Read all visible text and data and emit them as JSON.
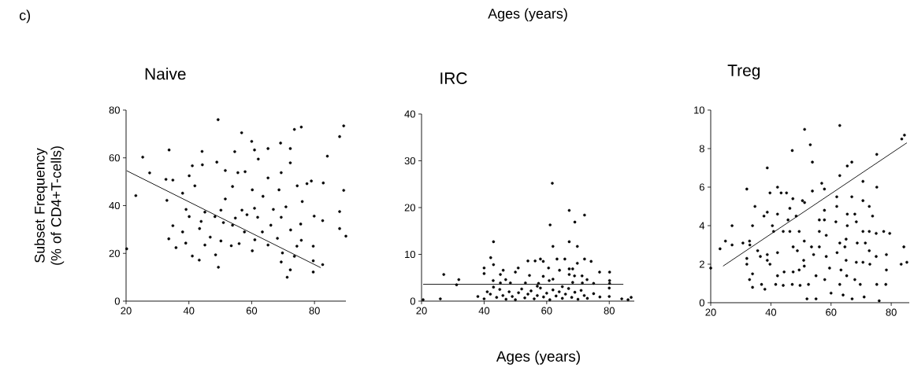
{
  "chart_data": [
    {
      "type": "scatter",
      "title": "Naive",
      "ylabel": "Subset Frequency (% of CD4+T-cells)",
      "annotations": [
        "c)"
      ],
      "xlim": [
        20,
        90
      ],
      "ylim": [
        0,
        80
      ],
      "xticks": [
        20,
        40,
        60,
        80
      ],
      "yticks": [
        0,
        20,
        40,
        60,
        80
      ],
      "series": [
        {
          "marker": "circle",
          "color": "#000000",
          "x": [
            49.3,
            56.8,
            73.6,
            75.8,
            89.3,
            88.0,
            84.1,
            25.3,
            33.7,
            27.5,
            23.1,
            20.2,
            60.0,
            69.2,
            60.9,
            65.2,
            72.3,
            62.1,
            54.6,
            44.2,
            48.9,
            41.1,
            44.3,
            32.7,
            34.9,
            40.1,
            41.9,
            53.9,
            57.9,
            55.6,
            51.6,
            65.2,
            69.4,
            72.3,
            79.0,
            82.8,
            89.3,
            77.6,
            74.5,
            68.7,
            60.2,
            38.0,
            33.0,
            51.6,
            63.6,
            76.1,
            39.1,
            45.1,
            50.2,
            56.9,
            60.9,
            66.9,
            70.9,
            40.1,
            48.3,
            54.8,
            61.9,
            69.4,
            79.9,
            82.6,
            88.0,
            43.9,
            51.0,
            58.5,
            34.9,
            66.1,
            75.6,
            43.4,
            53.9,
            57.7,
            63.4,
            72.4,
            88.0,
            38.0,
            90.0,
            33.6,
            46.8,
            39.0,
            50.2,
            56.0,
            61.0,
            68.2,
            75.8,
            35.9,
            45.1,
            53.5,
            60.2,
            65.2,
            74.4,
            79.6,
            41.1,
            43.3,
            48.5,
            69.8,
            69.4,
            73.6,
            49.4,
            72.3,
            71.3,
            79.6,
            79.6,
            82.6
          ],
          "values": [
            76.0,
            70.5,
            71.9,
            72.9,
            73.4,
            68.9,
            60.7,
            60.3,
            63.3,
            53.7,
            44.2,
            21.9,
            66.9,
            66.2,
            63.3,
            63.9,
            63.9,
            59.5,
            62.6,
            62.7,
            58.2,
            56.7,
            57.1,
            51.0,
            50.7,
            52.5,
            48.3,
            48.0,
            54.2,
            53.8,
            54.7,
            51.6,
            53.8,
            57.9,
            50.3,
            49.5,
            46.4,
            49.2,
            48.3,
            46.6,
            46.6,
            45.2,
            42.2,
            42.8,
            43.9,
            41.7,
            38.4,
            37.3,
            38.1,
            38.1,
            38.9,
            38.4,
            39.5,
            35.4,
            35.4,
            34.8,
            35.1,
            35.1,
            35.6,
            33.7,
            37.5,
            33.4,
            32.9,
            36.2,
            31.6,
            31.8,
            32.3,
            30.4,
            31.8,
            29.0,
            29.0,
            29.8,
            30.4,
            29.0,
            27.2,
            26.1,
            26.8,
            24.3,
            25.2,
            24.1,
            25.7,
            26.3,
            25.5,
            22.4,
            23.5,
            23.2,
            21.1,
            23.5,
            23.0,
            23.0,
            18.9,
            17.2,
            19.4,
            20.2,
            16.4,
            18.8,
            14.2,
            13.1,
            10.0,
            16.9,
            12.2,
            15.3
          ]
        },
        {
          "type": "line",
          "color": "#000000",
          "x": [
            20.2,
            82.0
          ],
          "values": [
            54.6,
            14.0
          ]
        }
      ]
    },
    {
      "type": "scatter",
      "title": "IRC",
      "xlabel": "Ages (years)",
      "annotations": [
        "Ages (years)"
      ],
      "xlim": [
        20,
        88
      ],
      "ylim": [
        0,
        40
      ],
      "xticks": [
        20,
        40,
        60,
        80
      ],
      "yticks": [
        0,
        10,
        20,
        30,
        40
      ],
      "series": [
        {
          "marker": "circle",
          "color": "#000000",
          "x": [
            61.8,
            67.2,
            69.0,
            72.1,
            61.1,
            62.0,
            67.2,
            69.8,
            43.0,
            42.1,
            43.0,
            40.0,
            40.0,
            27.1,
            31.9,
            45.2,
            46.1,
            50.9,
            50.0,
            54.0,
            56.3,
            58.0,
            58.9,
            60.6,
            63.3,
            65.8,
            64.1,
            67.2,
            68.3,
            67.2,
            69.8,
            72.1,
            74.2,
            68.9,
            71.3,
            72.9,
            76.9,
            80.1,
            54.5,
            58.9,
            62.0,
            42.9,
            46.9,
            48.4,
            45.2,
            53.2,
            57.4,
            60.8,
            68.3,
            71.4,
            75.0,
            80.1,
            80.1,
            31.2,
            20.5,
            26,
            38,
            40,
            41,
            42,
            44,
            45,
            46,
            47,
            48,
            49,
            50,
            51,
            52,
            53,
            54,
            55,
            56,
            57,
            58,
            59,
            60,
            61,
            62,
            63,
            64,
            65,
            66,
            67,
            68,
            69,
            70,
            71,
            72,
            73,
            75,
            77,
            80,
            80,
            84,
            86,
            87,
            43,
            57,
            65
          ],
          "values": [
            25.2,
            19.4,
            16.9,
            18.4,
            16.3,
            11.7,
            12.7,
            11.7,
            12.7,
            9.3,
            7.8,
            7.1,
            5.9,
            5.7,
            4.6,
            5.7,
            6.6,
            7.1,
            6.2,
            8.6,
            8.6,
            9.0,
            8.5,
            7.1,
            9.0,
            9.0,
            6.6,
            6.9,
            6.9,
            5.7,
            8.1,
            9.0,
            8.5,
            5.4,
            5.4,
            4.6,
            6.2,
            6.2,
            5.5,
            5.3,
            4.7,
            4.4,
            4.6,
            3.9,
            3.9,
            3.9,
            3.8,
            4.4,
            4.0,
            3.9,
            3.8,
            4.4,
            3.8,
            3.5,
            0.3,
            0.5,
            1.0,
            0.5,
            2.0,
            1.5,
            0.8,
            2.5,
            1.2,
            0.4,
            2.0,
            1.0,
            0.3,
            1.8,
            2.6,
            0.7,
            1.5,
            2.2,
            0.5,
            1.2,
            2.8,
            0.9,
            1.7,
            0.3,
            2.4,
            1.1,
            2.0,
            0.6,
            1.5,
            2.7,
            0.8,
            1.9,
            0.4,
            2.3,
            1.2,
            0.6,
            1.6,
            0.9,
            2.8,
            1.0,
            0.5,
            0.3,
            0.8,
            3.0,
            3.2,
            3.1
          ]
        },
        {
          "type": "line",
          "color": "#000000",
          "x": [
            20.5,
            84.5
          ],
          "values": [
            3.6,
            3.6
          ]
        }
      ]
    },
    {
      "type": "scatter",
      "title": "Treg",
      "xlim": [
        20,
        86
      ],
      "ylim": [
        0,
        10
      ],
      "xticks": [
        20,
        40,
        60,
        80
      ],
      "yticks": [
        0,
        2,
        4,
        6,
        8,
        10
      ],
      "series": [
        {
          "marker": "circle",
          "color": "#000000",
          "x": [
            20.0,
            23.1,
            24.9,
            27.1,
            27.1,
            30.7,
            32.0,
            32.9,
            33.0,
            32.0,
            32.0,
            33.9,
            34.7,
            33.9,
            32.9,
            33.9,
            35.6,
            36.5,
            36.9,
            37.7,
            38.8,
            38.8,
            38.8,
            38.8,
            39.7,
            39.7,
            40.5,
            40.9,
            42.2,
            42.2,
            42.2,
            42.2,
            41.6,
            43.4,
            44.1,
            44.4,
            45.2,
            45.7,
            46.3,
            46.3,
            47.1,
            47.3,
            47.4,
            47.4,
            44.1,
            47.1,
            48.4,
            48.8,
            49.4,
            49.4,
            49.7,
            50.5,
            51.2,
            51.2,
            51.1,
            50.9,
            51.1,
            52.5,
            53.1,
            53.8,
            53.8,
            53.5,
            54.2,
            55.0,
            56.1,
            56.1,
            56.1,
            56.9,
            57.8,
            57.8,
            57.8,
            58.4,
            58.4,
            57.9,
            59.5,
            61.6,
            61.9,
            61.9,
            62.9,
            62.9,
            62.9,
            62.0,
            63.3,
            62.9,
            65.4,
            66.9,
            65.4,
            65.4,
            65.0,
            64.6,
            65.0,
            65.2,
            66.9,
            67.9,
            68.4,
            68.7,
            68.4,
            67.9,
            70.6,
            70.6,
            70.6,
            71.4,
            70.6,
            69.7,
            72.7,
            72.7,
            72.7,
            72.9,
            73.8,
            75.2,
            75.2,
            75.0,
            75.0,
            75.2,
            77.5,
            78.4,
            78.4,
            79.5,
            78.2,
            83.5,
            84.4,
            84.2,
            83.3,
            85.2,
            52,
            55,
            60,
            64,
            67,
            71,
            76,
            38
          ],
          "values": [
            1.8,
            2.8,
            3.2,
            4.0,
            3.0,
            3.1,
            5.9,
            3.2,
            3.0,
            2.3,
            2.0,
            4.0,
            5.0,
            1.5,
            1.2,
            0.8,
            2.7,
            2.4,
            0.95,
            4.5,
            4.7,
            7.0,
            2.5,
            2.2,
            5.7,
            2.0,
            4.0,
            3.7,
            4.6,
            6.0,
            2.6,
            1.4,
            0.95,
            5.7,
            3.7,
            1.6,
            5.7,
            4.3,
            3.7,
            4.9,
            7.9,
            5.4,
            2.9,
            1.6,
            0.9,
            0.95,
            4.5,
            2.7,
            3.7,
            1.7,
            0.9,
            5.3,
            9.0,
            5.2,
            3.2,
            2.2,
            1.9,
            0.95,
            8.2,
            7.3,
            5.8,
            2.9,
            2.5,
            1.4,
            3.7,
            2.9,
            4.3,
            6.2,
            5.9,
            4.8,
            4.3,
            3.5,
            2.4,
            1.2,
            1.8,
            4.2,
            5.5,
            5.0,
            9.2,
            6.6,
            3.1,
            2.6,
            1.7,
            0.95,
            7.1,
            7.3,
            4.6,
            4.0,
            3.3,
            2.9,
            2.2,
            1.4,
            5.5,
            4.6,
            4.2,
            3.1,
            2.1,
            1.2,
            6.3,
            5.3,
            3.7,
            3.1,
            2.1,
            0.95,
            5.0,
            3.7,
            2.7,
            2.0,
            4.5,
            7.7,
            6.0,
            3.6,
            2.4,
            0.95,
            3.7,
            2.5,
            1.7,
            3.6,
            0.95,
            8.5,
            8.7,
            2.9,
            2.0,
            2.1,
            0.2,
            0.2,
            0.5,
            0.4,
            0.2,
            0.3,
            0.1,
            0.7
          ]
        },
        {
          "type": "line",
          "color": "#000000",
          "x": [
            24.1,
            85.2
          ],
          "values": [
            1.9,
            8.3
          ]
        }
      ]
    }
  ]
}
